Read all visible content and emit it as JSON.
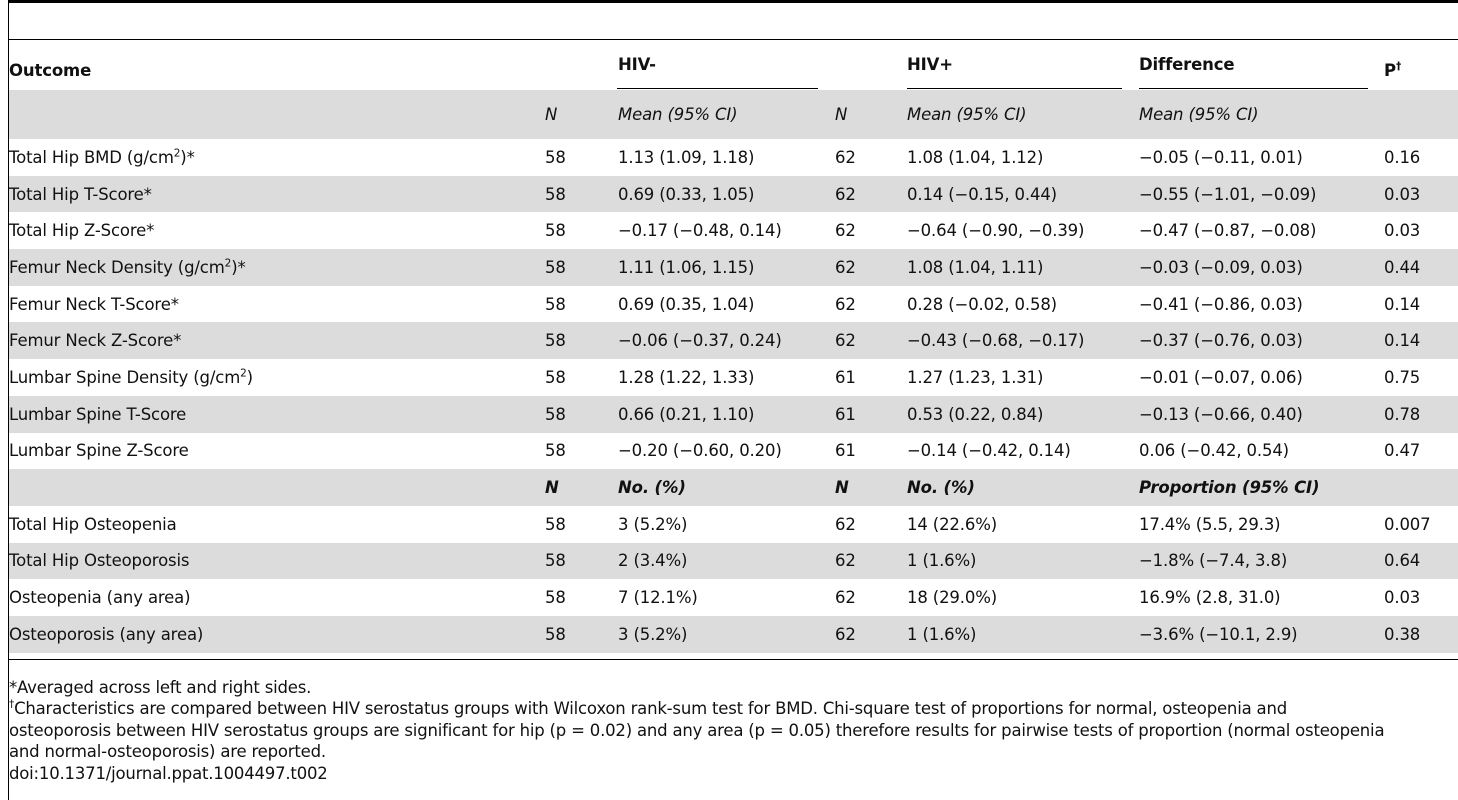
{
  "header": {
    "outcome": "Outcome",
    "hiv_neg": "HIV-",
    "hiv_pos": "HIV+",
    "difference": "Difference",
    "p": "P",
    "p_mark": "†"
  },
  "subheader": {
    "n1": "N",
    "mean1": "Mean (95% CI)",
    "n2": "N",
    "mean2": "Mean (95% CI)",
    "meandiff": "Mean (95% CI)"
  },
  "bmd_rows": [
    {
      "outcome": "Total Hip BMD (g/cm",
      "sup": "2",
      "suffix": ")*",
      "n1": "58",
      "v1": "1.13 (1.09, 1.18)",
      "n2": "62",
      "v2": "1.08 (1.04, 1.12)",
      "diff": "−0.05 (−0.11, 0.01)",
      "p": "0.16"
    },
    {
      "outcome": "Total Hip T-Score*",
      "sup": "",
      "suffix": "",
      "n1": "58",
      "v1": "0.69 (0.33, 1.05)",
      "n2": "62",
      "v2": "0.14 (−0.15, 0.44)",
      "diff": "−0.55 (−1.01, −0.09)",
      "p": "0.03"
    },
    {
      "outcome": "Total Hip Z-Score*",
      "sup": "",
      "suffix": "",
      "n1": "58",
      "v1": "−0.17 (−0.48, 0.14)",
      "n2": "62",
      "v2": "−0.64 (−0.90, −0.39)",
      "diff": "−0.47 (−0.87, −0.08)",
      "p": "0.03"
    },
    {
      "outcome": "Femur Neck Density (g/cm",
      "sup": "2",
      "suffix": ")*",
      "n1": "58",
      "v1": "1.11 (1.06, 1.15)",
      "n2": "62",
      "v2": "1.08 (1.04, 1.11)",
      "diff": "−0.03 (−0.09, 0.03)",
      "p": "0.44"
    },
    {
      "outcome": "Femur Neck T-Score*",
      "sup": "",
      "suffix": "",
      "n1": "58",
      "v1": "0.69 (0.35, 1.04)",
      "n2": "62",
      "v2": "0.28 (−0.02, 0.58)",
      "diff": "−0.41 (−0.86, 0.03)",
      "p": "0.14"
    },
    {
      "outcome": "Femur Neck Z-Score*",
      "sup": "",
      "suffix": "",
      "n1": "58",
      "v1": "−0.06 (−0.37, 0.24)",
      "n2": "62",
      "v2": "−0.43 (−0.68, −0.17)",
      "diff": "−0.37 (−0.76, 0.03)",
      "p": "0.14"
    },
    {
      "outcome": "Lumbar Spine Density (g/cm",
      "sup": "2",
      "suffix": ")",
      "n1": "58",
      "v1": "1.28 (1.22, 1.33)",
      "n2": "61",
      "v2": "1.27 (1.23, 1.31)",
      "diff": "−0.01 (−0.07, 0.06)",
      "p": "0.75"
    },
    {
      "outcome": "Lumbar Spine T-Score",
      "sup": "",
      "suffix": "",
      "n1": "58",
      "v1": "0.66 (0.21, 1.10)",
      "n2": "61",
      "v2": "0.53 (0.22, 0.84)",
      "diff": "−0.13 (−0.66, 0.40)",
      "p": "0.78"
    },
    {
      "outcome": "Lumbar Spine Z-Score",
      "sup": "",
      "suffix": "",
      "n1": "58",
      "v1": "−0.20 (−0.60, 0.20)",
      "n2": "61",
      "v2": "−0.14 (−0.42, 0.14)",
      "diff": "0.06 (−0.42, 0.54)",
      "p": "0.47"
    }
  ],
  "subheader2": {
    "n1": "N",
    "count1": "No. (%)",
    "n2": "N",
    "count2": "No. (%)",
    "propdiff": "Proportion (95% CI)"
  },
  "count_rows": [
    {
      "outcome": "Total Hip Osteopenia",
      "n1": "58",
      "v1": "3 (5.2%)",
      "n2": "62",
      "v2": "14 (22.6%)",
      "diff": "17.4% (5.5, 29.3)",
      "p": "0.007"
    },
    {
      "outcome": "Total Hip Osteoporosis",
      "n1": "58",
      "v1": "2 (3.4%)",
      "n2": "62",
      "v2": "1 (1.6%)",
      "diff": "−1.8% (−7.4, 3.8)",
      "p": "0.64"
    },
    {
      "outcome": "Osteopenia (any area)",
      "n1": "58",
      "v1": "7 (12.1%)",
      "n2": "62",
      "v2": "18 (29.0%)",
      "diff": "16.9% (2.8, 31.0)",
      "p": "0.03"
    },
    {
      "outcome": "Osteoporosis (any area)",
      "n1": "58",
      "v1": "3 (5.2%)",
      "n2": "62",
      "v2": "1 (1.6%)",
      "diff": "−3.6% (−10.1, 2.9)",
      "p": "0.38"
    }
  ],
  "footnotes": {
    "note1": "*Averaged across left and right sides.",
    "note2_mark": "†",
    "note2_line1": "Characteristics are compared between HIV serostatus groups with Wilcoxon rank-sum test for BMD. Chi-square test of proportions for normal, osteopenia and",
    "note2_line2": "osteoporosis between HIV serostatus groups are significant for hip (p = 0.02) and any area (p = 0.05) therefore results for pairwise tests of proportion (normal osteopenia",
    "note2_line3": "and normal-osteoporosis) are reported.",
    "doi": "doi:10.1371/journal.ppat.1004497.t002"
  }
}
